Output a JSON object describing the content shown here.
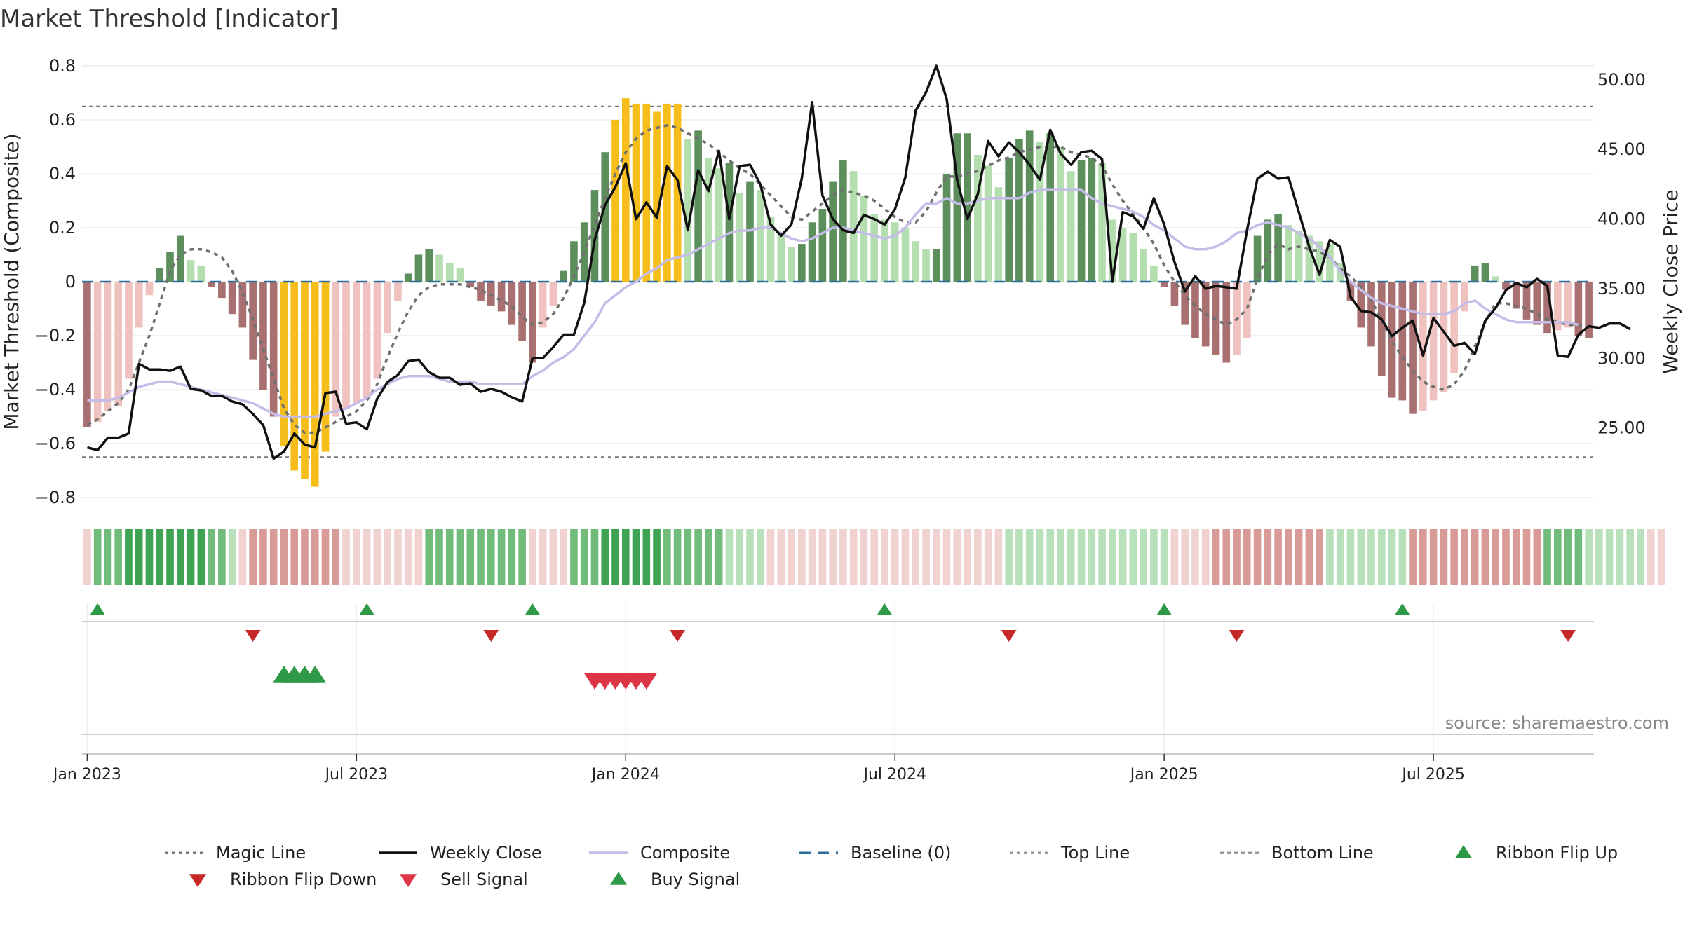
{
  "chart_data": {
    "type": "bar",
    "title": "Market Threshold [Indicator]",
    "ylabel": "Market Threshold (Composite)",
    "y2label": "Weekly Close Price",
    "source": "source: sharemaestro.com",
    "ylim": [
      -0.8,
      0.8
    ],
    "y2lim": [
      20,
      51
    ],
    "yticks": [
      "0.8",
      "0.6",
      "0.4",
      "0.2",
      "0",
      "−0.2",
      "−0.4",
      "−0.6",
      "−0.8"
    ],
    "y2ticks": [
      "50.00",
      "45.00",
      "40.00",
      "35.00",
      "30.00",
      "25.00"
    ],
    "xticks": [
      "Jan 2023",
      "Jul 2023",
      "Jan 2024",
      "Jul 2024",
      "Jan 2025",
      "Jul 2025"
    ],
    "top_line": 0.65,
    "bottom_line": -0.65,
    "grid": true,
    "legend_position": "bottom",
    "legend": [
      {
        "label": "Magic Line",
        "kind": "dotted",
        "color": "#777777"
      },
      {
        "label": "Weekly Close",
        "kind": "solid",
        "color": "#111111"
      },
      {
        "label": "Composite",
        "kind": "solid",
        "color": "#c5bce8"
      },
      {
        "label": "Baseline (0)",
        "kind": "dashed",
        "color": "#2c6e9b"
      },
      {
        "label": "Top Line",
        "kind": "dotted",
        "color": "#999999"
      },
      {
        "label": "Bottom Line",
        "kind": "dotted",
        "color": "#999999"
      },
      {
        "label": "Ribbon Flip Up",
        "kind": "tri-up",
        "color": "#2e9a48"
      },
      {
        "label": "Ribbon Flip Down",
        "kind": "tri-down",
        "color": "#c62828"
      },
      {
        "label": "Sell Signal",
        "kind": "tri-down",
        "color": "#dc3545"
      },
      {
        "label": "Buy Signal",
        "kind": "tri-up",
        "color": "#2e9a48"
      }
    ],
    "colors": {
      "strong_pos": "#5c8f5c",
      "weak_pos": "#b5deb0",
      "strong_neg": "#a87070",
      "weak_neg": "#efc2c0",
      "extreme": "#f6be1a"
    },
    "composite": [
      -0.54,
      -0.52,
      -0.48,
      -0.46,
      -0.36,
      -0.17,
      -0.05,
      0.05,
      0.11,
      0.17,
      0.08,
      0.06,
      -0.02,
      -0.06,
      -0.12,
      -0.17,
      -0.29,
      -0.4,
      -0.5,
      -0.61,
      -0.7,
      -0.73,
      -0.76,
      -0.63,
      -0.5,
      -0.47,
      -0.45,
      -0.43,
      -0.36,
      -0.19,
      -0.07,
      0.03,
      0.1,
      0.12,
      0.1,
      0.07,
      0.05,
      -0.02,
      -0.07,
      -0.09,
      -0.11,
      -0.16,
      -0.22,
      -0.3,
      -0.17,
      -0.09,
      0.04,
      0.15,
      0.22,
      0.34,
      0.48,
      0.6,
      0.68,
      0.66,
      0.66,
      0.63,
      0.66,
      0.66,
      0.53,
      0.56,
      0.46,
      0.42,
      0.44,
      0.33,
      0.37,
      0.34,
      0.24,
      0.18,
      0.13,
      0.14,
      0.22,
      0.27,
      0.37,
      0.45,
      0.41,
      0.32,
      0.25,
      0.23,
      0.22,
      0.2,
      0.15,
      0.12,
      0.12,
      0.4,
      0.55,
      0.55,
      0.47,
      0.43,
      0.35,
      0.46,
      0.53,
      0.56,
      0.52,
      0.55,
      0.5,
      0.41,
      0.45,
      0.46,
      0.44,
      0.23,
      0.2,
      0.18,
      0.12,
      0.06,
      -0.02,
      -0.09,
      -0.16,
      -0.21,
      -0.24,
      -0.27,
      -0.3,
      -0.27,
      -0.21,
      0.17,
      0.23,
      0.25,
      0.21,
      0.19,
      0.17,
      0.15,
      0.14,
      0.07,
      -0.07,
      -0.17,
      -0.24,
      -0.35,
      -0.43,
      -0.44,
      -0.49,
      -0.48,
      -0.44,
      -0.41,
      -0.34,
      -0.11,
      0.06,
      0.07,
      0.02,
      -0.03,
      -0.1,
      -0.14,
      -0.16,
      -0.19,
      -0.18,
      -0.17,
      -0.2,
      -0.21
    ],
    "close": [
      23.6,
      23.4,
      24.3,
      24.3,
      24.6,
      29.6,
      29.2,
      29.2,
      29.1,
      29.4,
      27.8,
      27.7,
      27.3,
      27.3,
      26.9,
      26.7,
      26.0,
      25.2,
      22.8,
      23.3,
      24.6,
      23.8,
      23.6,
      27.5,
      27.6,
      25.3,
      25.4,
      24.9,
      27.1,
      28.3,
      28.8,
      29.8,
      29.9,
      29.0,
      28.6,
      28.6,
      28.1,
      28.2,
      27.6,
      27.8,
      27.6,
      27.2,
      26.9,
      30.0,
      30.0,
      30.8,
      31.7,
      31.7,
      34.0,
      38.5,
      41.0,
      42.3,
      44.0,
      40.0,
      41.2,
      40.1,
      43.8,
      42.8,
      39.2,
      43.5,
      42.0,
      44.9,
      40.0,
      43.8,
      43.9,
      42.5,
      39.6,
      38.8,
      39.6,
      42.9,
      48.4,
      41.7,
      40.0,
      39.2,
      39.0,
      40.3,
      40.0,
      39.6,
      40.7,
      43.0,
      47.8,
      49.1,
      51.0,
      48.6,
      42.8,
      40.0,
      41.8,
      45.6,
      44.5,
      45.5,
      44.8,
      43.9,
      42.8,
      46.4,
      44.7,
      43.9,
      44.8,
      44.9,
      44.3,
      35.5,
      40.5,
      40.2,
      39.3,
      41.5,
      39.6,
      36.9,
      34.8,
      35.9,
      35.0,
      35.2,
      35.1,
      35.0,
      39.2,
      42.9,
      43.4,
      42.9,
      43.0,
      40.5,
      38.0,
      36.0,
      38.5,
      38.0,
      34.4,
      33.4,
      33.3,
      32.8,
      31.6,
      32.2,
      32.7,
      30.2,
      32.9,
      31.9,
      30.9,
      31.1,
      30.3,
      32.7,
      33.6,
      34.9,
      35.4,
      35.1,
      35.7,
      35.2,
      30.2,
      30.1,
      31.7,
      32.3,
      32.2,
      32.5,
      32.5,
      32.1
    ],
    "magic_line": [
      -0.53,
      -0.51,
      -0.48,
      -0.45,
      -0.4,
      -0.3,
      -0.2,
      -0.08,
      0.04,
      0.1,
      0.12,
      0.12,
      0.11,
      0.09,
      0.04,
      -0.04,
      -0.14,
      -0.25,
      -0.36,
      -0.47,
      -0.53,
      -0.56,
      -0.56,
      -0.54,
      -0.52,
      -0.5,
      -0.48,
      -0.44,
      -0.38,
      -0.28,
      -0.19,
      -0.11,
      -0.05,
      -0.02,
      -0.01,
      -0.01,
      -0.01,
      -0.02,
      -0.03,
      -0.05,
      -0.07,
      -0.09,
      -0.13,
      -0.16,
      -0.15,
      -0.12,
      -0.06,
      0.02,
      0.11,
      0.21,
      0.31,
      0.4,
      0.48,
      0.53,
      0.56,
      0.57,
      0.58,
      0.57,
      0.55,
      0.53,
      0.51,
      0.48,
      0.45,
      0.42,
      0.4,
      0.36,
      0.32,
      0.28,
      0.24,
      0.23,
      0.26,
      0.29,
      0.32,
      0.34,
      0.33,
      0.32,
      0.3,
      0.27,
      0.24,
      0.22,
      0.22,
      0.26,
      0.33,
      0.39,
      0.39,
      0.4,
      0.41,
      0.43,
      0.45,
      0.46,
      0.48,
      0.49,
      0.5,
      0.5,
      0.5,
      0.48,
      0.47,
      0.46,
      0.43,
      0.36,
      0.3,
      0.25,
      0.2,
      0.14,
      0.06,
      0.0,
      -0.05,
      -0.09,
      -0.12,
      -0.14,
      -0.16,
      -0.14,
      -0.1,
      0.01,
      0.1,
      0.14,
      0.12,
      0.13,
      0.12,
      0.11,
      0.09,
      0.05,
      0.02,
      -0.02,
      -0.07,
      -0.14,
      -0.22,
      -0.28,
      -0.33,
      -0.37,
      -0.39,
      -0.4,
      -0.38,
      -0.33,
      -0.24,
      -0.15,
      -0.08,
      -0.08,
      -0.09,
      -0.1,
      -0.12,
      -0.14,
      -0.15,
      -0.16,
      -0.16,
      -0.17
    ],
    "composite_smooth": [
      -0.44,
      -0.44,
      -0.44,
      -0.43,
      -0.41,
      -0.39,
      -0.38,
      -0.37,
      -0.37,
      -0.38,
      -0.39,
      -0.4,
      -0.41,
      -0.42,
      -0.43,
      -0.44,
      -0.45,
      -0.47,
      -0.49,
      -0.5,
      -0.5,
      -0.5,
      -0.5,
      -0.49,
      -0.48,
      -0.47,
      -0.45,
      -0.43,
      -0.4,
      -0.38,
      -0.36,
      -0.35,
      -0.35,
      -0.35,
      -0.36,
      -0.37,
      -0.37,
      -0.37,
      -0.38,
      -0.38,
      -0.38,
      -0.38,
      -0.38,
      -0.35,
      -0.33,
      -0.3,
      -0.28,
      -0.25,
      -0.2,
      -0.15,
      -0.08,
      -0.05,
      -0.02,
      0.0,
      0.03,
      0.05,
      0.08,
      0.09,
      0.1,
      0.12,
      0.14,
      0.16,
      0.18,
      0.19,
      0.19,
      0.2,
      0.2,
      0.18,
      0.16,
      0.15,
      0.16,
      0.18,
      0.2,
      0.2,
      0.19,
      0.18,
      0.17,
      0.16,
      0.17,
      0.2,
      0.25,
      0.29,
      0.29,
      0.31,
      0.29,
      0.29,
      0.3,
      0.31,
      0.31,
      0.31,
      0.31,
      0.33,
      0.34,
      0.34,
      0.34,
      0.34,
      0.34,
      0.31,
      0.29,
      0.28,
      0.27,
      0.26,
      0.24,
      0.21,
      0.19,
      0.16,
      0.13,
      0.12,
      0.12,
      0.13,
      0.15,
      0.18,
      0.19,
      0.21,
      0.22,
      0.21,
      0.2,
      0.18,
      0.16,
      0.13,
      0.09,
      0.04,
      0.0,
      -0.03,
      -0.06,
      -0.08,
      -0.09,
      -0.1,
      -0.11,
      -0.12,
      -0.12,
      -0.12,
      -0.11,
      -0.08,
      -0.07,
      -0.1,
      -0.12,
      -0.14,
      -0.15,
      -0.15,
      -0.15,
      -0.15,
      -0.15,
      -0.15,
      -0.16
    ],
    "ribbon": [
      -1,
      2,
      2,
      2,
      3,
      3,
      3,
      3,
      3,
      3,
      3,
      3,
      2,
      2,
      1,
      -1,
      -2,
      -2,
      -2,
      -2,
      -2,
      -2,
      -2,
      -2,
      -2,
      -1,
      -1,
      -1,
      -1,
      -1,
      -1,
      -1,
      -1,
      2,
      2,
      2,
      2,
      2,
      2,
      2,
      2,
      2,
      2,
      -1,
      -1,
      -1,
      -1,
      2,
      2,
      2,
      3,
      3,
      3,
      3,
      3,
      3,
      2,
      2,
      2,
      2,
      2,
      2,
      1,
      1,
      1,
      1,
      -1,
      -1,
      -1,
      -1,
      -1,
      -1,
      -1,
      -1,
      -1,
      -1,
      -1,
      -1,
      -1,
      -1,
      -1,
      -1,
      -1,
      -1,
      -1,
      -1,
      -1,
      -1,
      -1,
      1,
      1,
      1,
      1,
      1,
      1,
      1,
      1,
      1,
      1,
      1,
      1,
      1,
      1,
      1,
      1,
      -1,
      -1,
      -1,
      -1,
      -2,
      -2,
      -2,
      -2,
      -2,
      -2,
      -2,
      -2,
      -2,
      -2,
      -2,
      1,
      1,
      1,
      1,
      1,
      1,
      1,
      1,
      -2,
      -2,
      -2,
      -2,
      -2,
      -2,
      -2,
      -2,
      -2,
      -2,
      -2,
      -2,
      -2,
      2,
      2,
      2,
      2,
      1,
      1,
      1,
      1,
      1,
      1,
      -1,
      -1
    ],
    "ribbon_flip_up_weeks": [
      1,
      27,
      43,
      77,
      104,
      127
    ],
    "ribbon_flip_down_weeks": [
      16,
      39,
      57,
      89,
      111,
      143
    ],
    "buy_signal_weeks": [
      19,
      20,
      21,
      22
    ],
    "sell_signal_weeks": [
      49,
      50,
      51,
      52,
      53,
      54
    ]
  }
}
